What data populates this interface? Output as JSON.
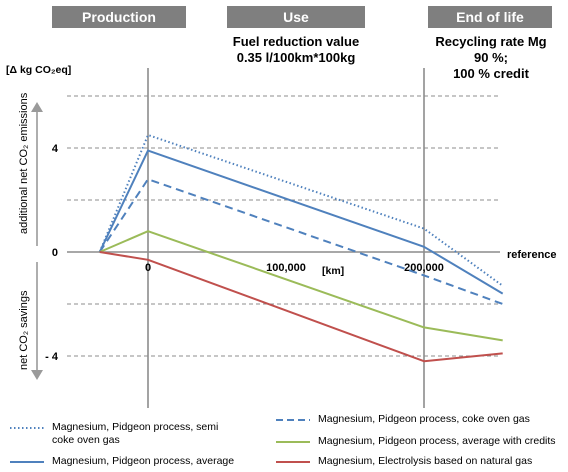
{
  "phases": {
    "production": {
      "label": "Production"
    },
    "use": {
      "label": "Use",
      "note_line1": "Fuel reduction value",
      "note_line2": "0.35  l/100km*100kg"
    },
    "end_of_life": {
      "label": "End of life",
      "note_line1": "Recycling rate Mg",
      "note_line2": "90 %;",
      "note_line3": "100 %  credit"
    }
  },
  "axes": {
    "ylabel_unit": "[Δ kg CO₂eq]",
    "upper_label": "additional net CO₂ emissions",
    "lower_label": "net CO₂ savings",
    "xlabel_unit": "[km]",
    "reference_label": "reference"
  },
  "chart_data": {
    "type": "line",
    "x_ticks": [
      "0",
      "100,000",
      "200,000"
    ],
    "y_ticks": [
      "4",
      "0",
      "- 4"
    ],
    "ylim": [
      -5,
      8
    ],
    "xlim": [
      -35000,
      260000
    ],
    "grid": true,
    "series": [
      {
        "name": "Magnesium, Pidgeon process, semi coke oven gas",
        "color": "#4f81bd",
        "style": "dotted",
        "points": [
          [
            -35000,
            0
          ],
          [
            0,
            4.5
          ],
          [
            200000,
            0.9
          ],
          [
            257000,
            -1.3
          ]
        ]
      },
      {
        "name": "Magnesium, Pidgeon process, coke oven gas",
        "color": "#4f81bd",
        "style": "dashed",
        "points": [
          [
            -35000,
            0
          ],
          [
            0,
            2.8
          ],
          [
            200000,
            -0.9
          ],
          [
            257000,
            -2.0
          ]
        ]
      },
      {
        "name": "Magnesium, Pidgeon process, average",
        "color": "#4f81bd",
        "style": "solid",
        "points": [
          [
            -35000,
            0
          ],
          [
            0,
            3.9
          ],
          [
            200000,
            0.2
          ],
          [
            257000,
            -1.6
          ]
        ]
      },
      {
        "name": "Magnesium, Pidgeon process, average with credits",
        "color": "#9bbb59",
        "style": "solid",
        "points": [
          [
            -35000,
            0
          ],
          [
            0,
            0.8
          ],
          [
            200000,
            -2.9
          ],
          [
            257000,
            -3.4
          ]
        ]
      },
      {
        "name": "Magnesium, Electrolysis based on natural gas",
        "color": "#c0504d",
        "style": "solid",
        "points": [
          [
            -35000,
            0
          ],
          [
            0,
            -0.3
          ],
          [
            200000,
            -4.2
          ],
          [
            257000,
            -3.9
          ]
        ]
      }
    ]
  },
  "legend": [
    {
      "name": "Magnesium, Pidgeon process, semi",
      "name2": "coke oven gas",
      "color": "#4f81bd",
      "style": "dotted"
    },
    {
      "name": "Magnesium, Pidgeon process, coke oven gas",
      "color": "#4f81bd",
      "style": "dashed"
    },
    {
      "name": "Magnesium, Pidgeon process, average with credits",
      "color": "#9bbb59",
      "style": "solid"
    },
    {
      "name": "Magnesium, Pidgeon process, average",
      "color": "#4f81bd",
      "style": "solid"
    },
    {
      "name": "Magnesium, Electrolysis based on natural gas",
      "color": "#c0504d",
      "style": "solid"
    }
  ]
}
